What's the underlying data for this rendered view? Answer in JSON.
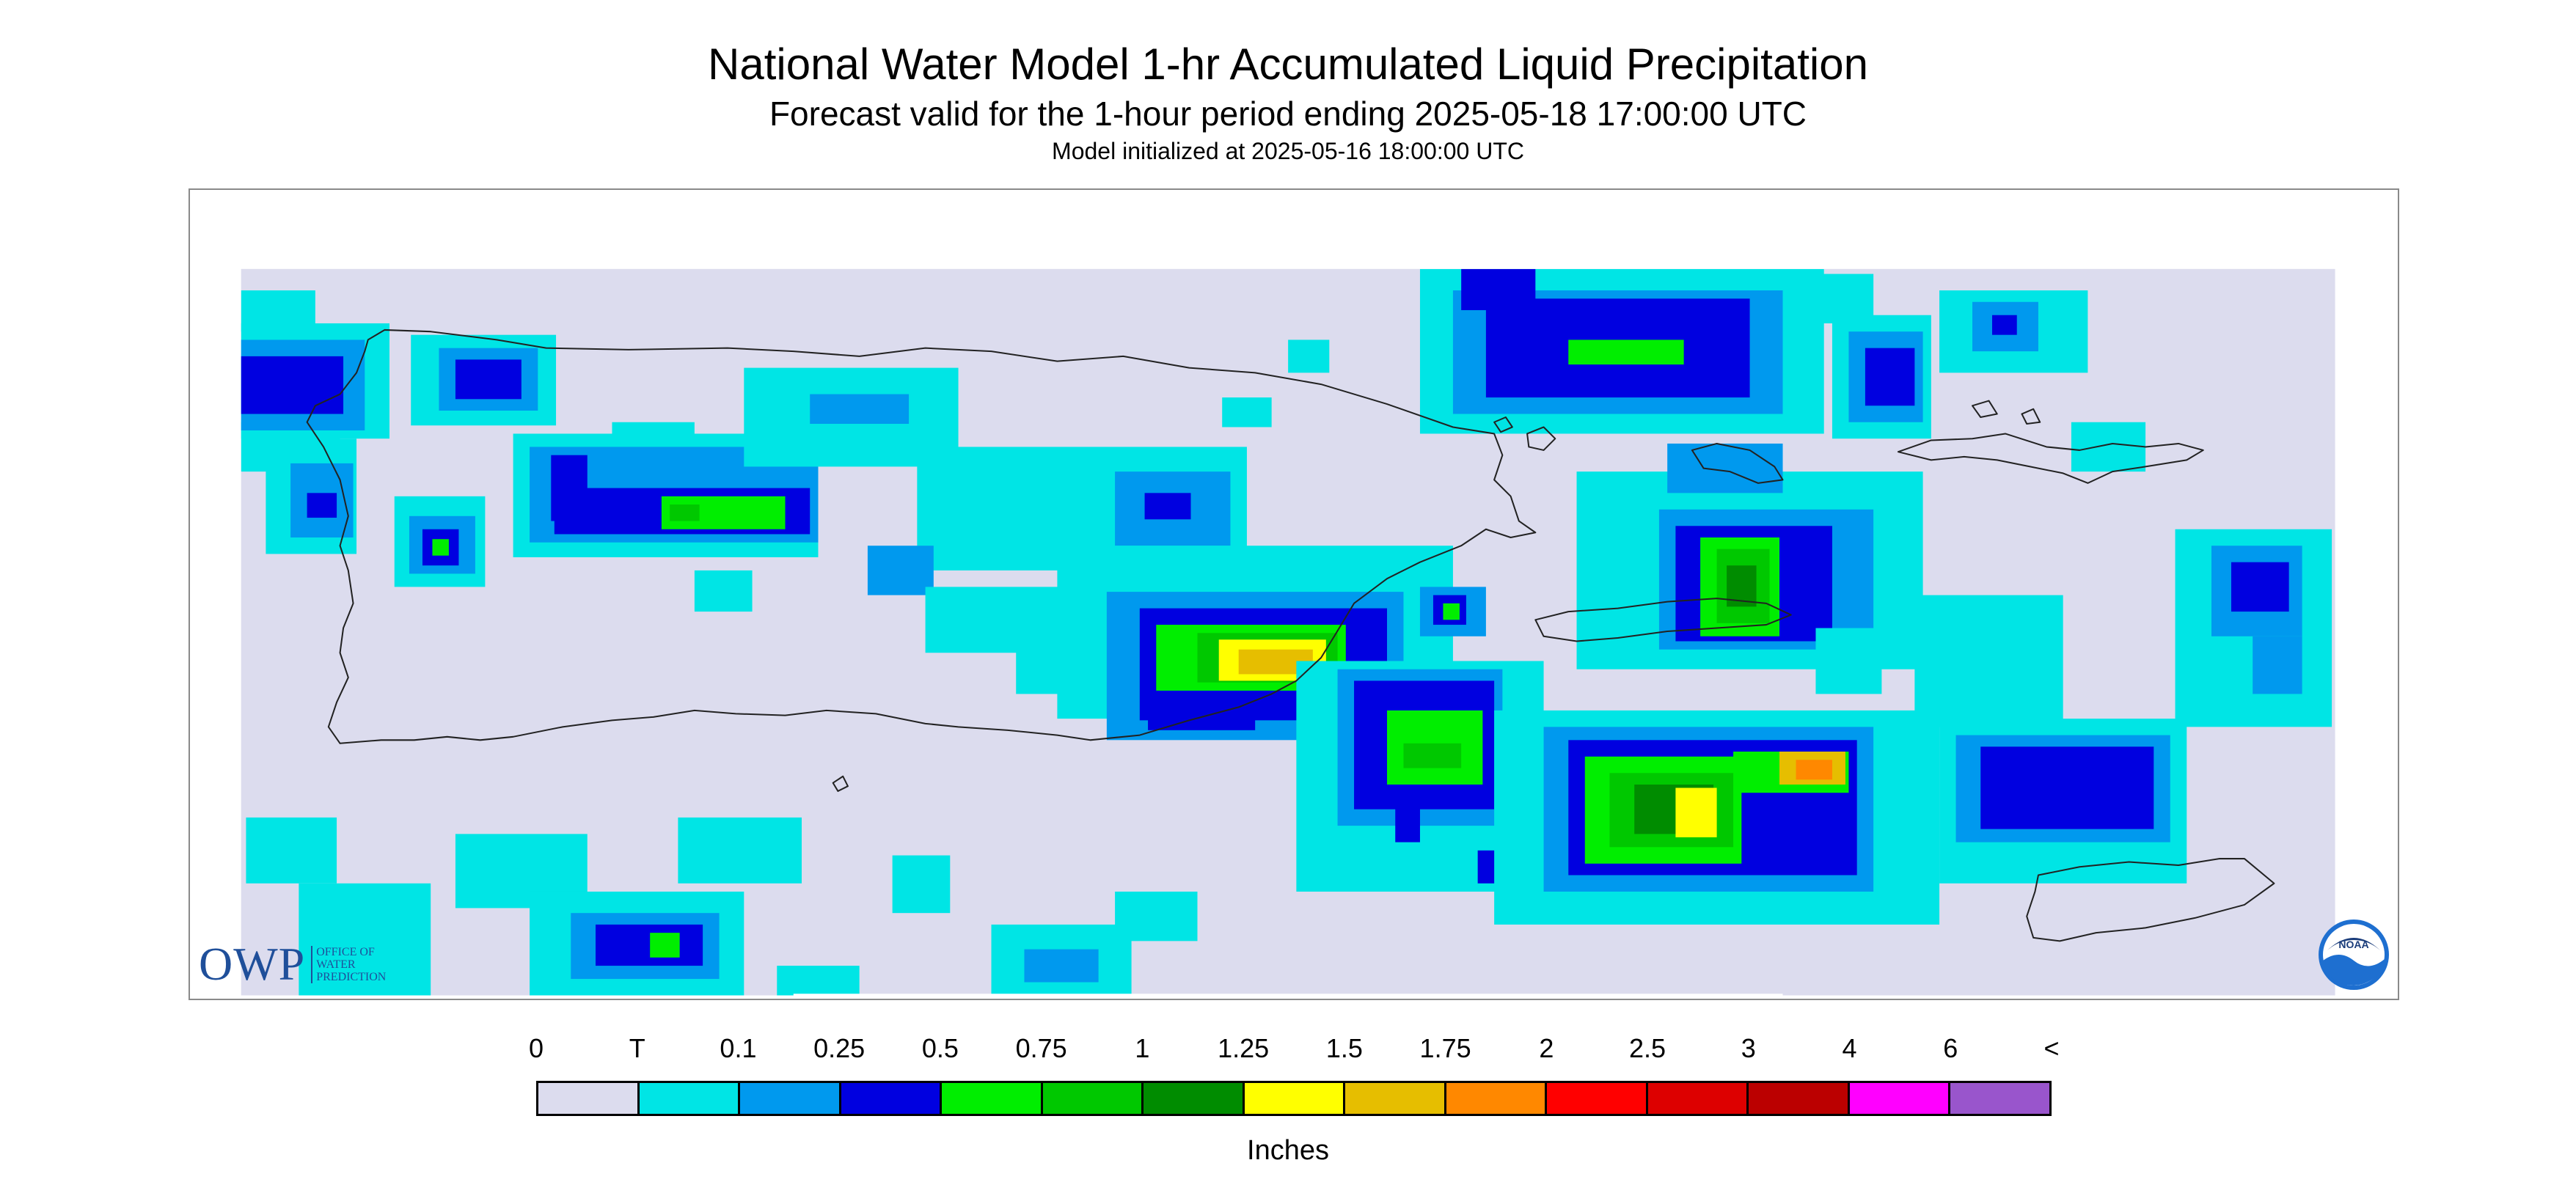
{
  "header": {
    "title": "National Water Model 1-hr Accumulated Liquid Precipitation",
    "subtitle": "Forecast valid for the 1-hour period ending 2025-05-18 17:00:00 UTC",
    "model_init": "Model initialized at 2025-05-16 18:00:00 UTC"
  },
  "map": {
    "region": "Puerto Rico and U.S. Virgin Islands",
    "no_data_color": "#ffffff",
    "zero_color": "#dcdcee",
    "outline_color": "#222222",
    "logos": {
      "owp_big": "OWP",
      "owp_small": [
        "OFFICE OF",
        "WATER",
        "PREDICTION"
      ],
      "noaa": "NOAA"
    }
  },
  "legend": {
    "tick_labels": [
      "0",
      "T",
      "0.1",
      "0.25",
      "0.5",
      "0.75",
      "1",
      "1.25",
      "1.5",
      "1.75",
      "2",
      "2.5",
      "3",
      "4",
      "6",
      "<"
    ],
    "colors": [
      "#dcdcee",
      "#00e5e5",
      "#0099ee",
      "#0000e0",
      "#00ee00",
      "#00c800",
      "#008c00",
      "#ffff00",
      "#e6be00",
      "#ff8800",
      "#ff0000",
      "#dd0000",
      "#bb0000",
      "#ff00ff",
      "#9955cc"
    ],
    "units": "Inches"
  },
  "precip_fields": [
    {
      "name": "northwest-corner",
      "class": "0.25",
      "center": [
        150,
        235
      ]
    },
    {
      "name": "north-west-coast",
      "class": "0.25",
      "center": [
        290,
        230
      ]
    },
    {
      "name": "northwest-band",
      "class": "0.75",
      "center": [
        410,
        310
      ]
    },
    {
      "name": "west-cell",
      "class": "0.25",
      "center": [
        265,
        330
      ]
    },
    {
      "name": "central-north",
      "class": "0.25",
      "center": [
        700,
        305
      ]
    },
    {
      "name": "east-coast-main",
      "class": "1.5",
      "center": [
        770,
        400
      ]
    },
    {
      "name": "eastern-offshore",
      "class": "1",
      "center": [
        870,
        450
      ]
    },
    {
      "name": "vieques-north",
      "class": "1.25",
      "center": [
        1055,
        355
      ]
    },
    {
      "name": "north-offshore-band",
      "class": "0.75",
      "center": [
        990,
        210
      ]
    },
    {
      "name": "st-thomas-cell",
      "class": "0.25",
      "center": [
        1213,
        197
      ]
    },
    {
      "name": "southeast-offshore",
      "class": "1.75",
      "center": [
        1100,
        465
      ]
    },
    {
      "name": "st-croix-band",
      "class": "0.25",
      "center": [
        1255,
        475
      ]
    },
    {
      "name": "far-east-cell",
      "class": "0.25",
      "center": [
        1370,
        355
      ]
    },
    {
      "name": "south-offshore-cell",
      "class": "0.75",
      "center": [
        395,
        575
      ]
    }
  ]
}
